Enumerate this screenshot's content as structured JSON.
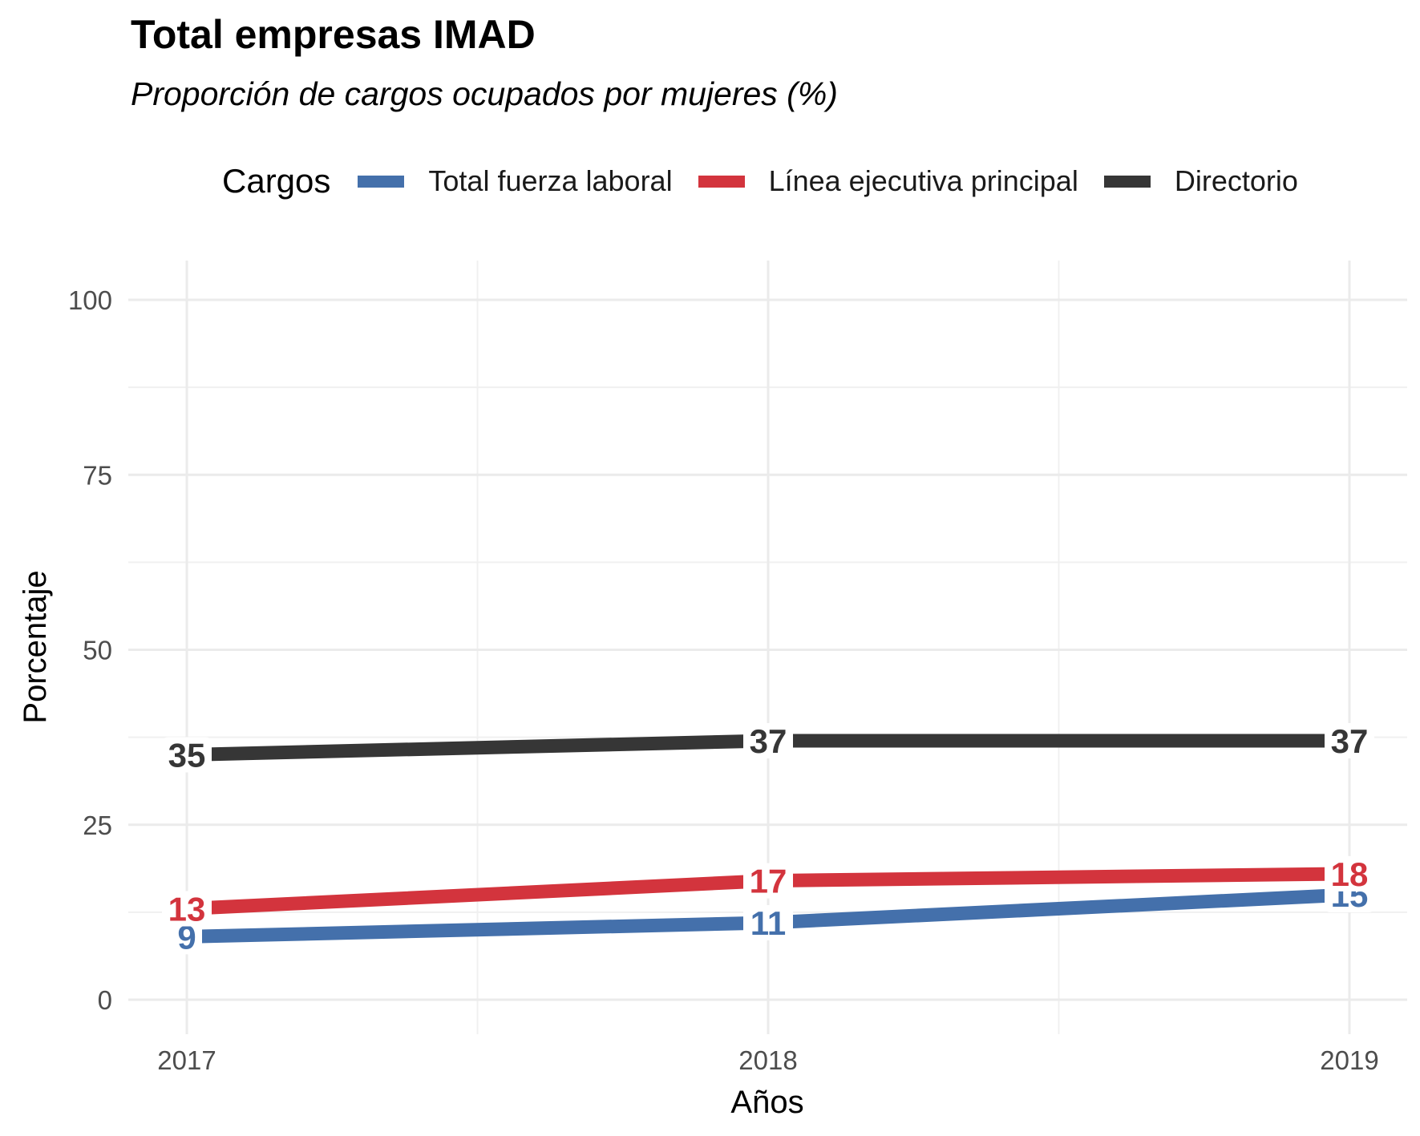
{
  "chart_data": {
    "type": "line",
    "title": "Total empresas IMAD",
    "subtitle": "Proporción de cargos ocupados por mujeres (%)",
    "xlabel": "Años",
    "ylabel": "Porcentaje",
    "legend_title": "Cargos",
    "legend_position": "top",
    "x": [
      2017,
      2018,
      2019
    ],
    "x_tick_labels": [
      "2017",
      "2018",
      "2019"
    ],
    "y_ticks": [
      0,
      25,
      50,
      75,
      100
    ],
    "y_tick_labels": [
      "0",
      "25",
      "50",
      "75",
      "100"
    ],
    "ylim": [
      0,
      100
    ],
    "grid": true,
    "series": [
      {
        "name": "Total fuerza laboral",
        "color": "#4470ab",
        "values": [
          9,
          11,
          15
        ],
        "labels": [
          "9",
          "11",
          "15"
        ]
      },
      {
        "name": "Línea ejecutiva principal",
        "color": "#d3343d",
        "values": [
          13,
          17,
          18
        ],
        "labels": [
          "13",
          "17",
          "18"
        ]
      },
      {
        "name": "Directorio",
        "color": "#363636",
        "values": [
          35,
          37,
          37
        ],
        "labels": [
          "35",
          "37",
          "37"
        ]
      }
    ]
  }
}
